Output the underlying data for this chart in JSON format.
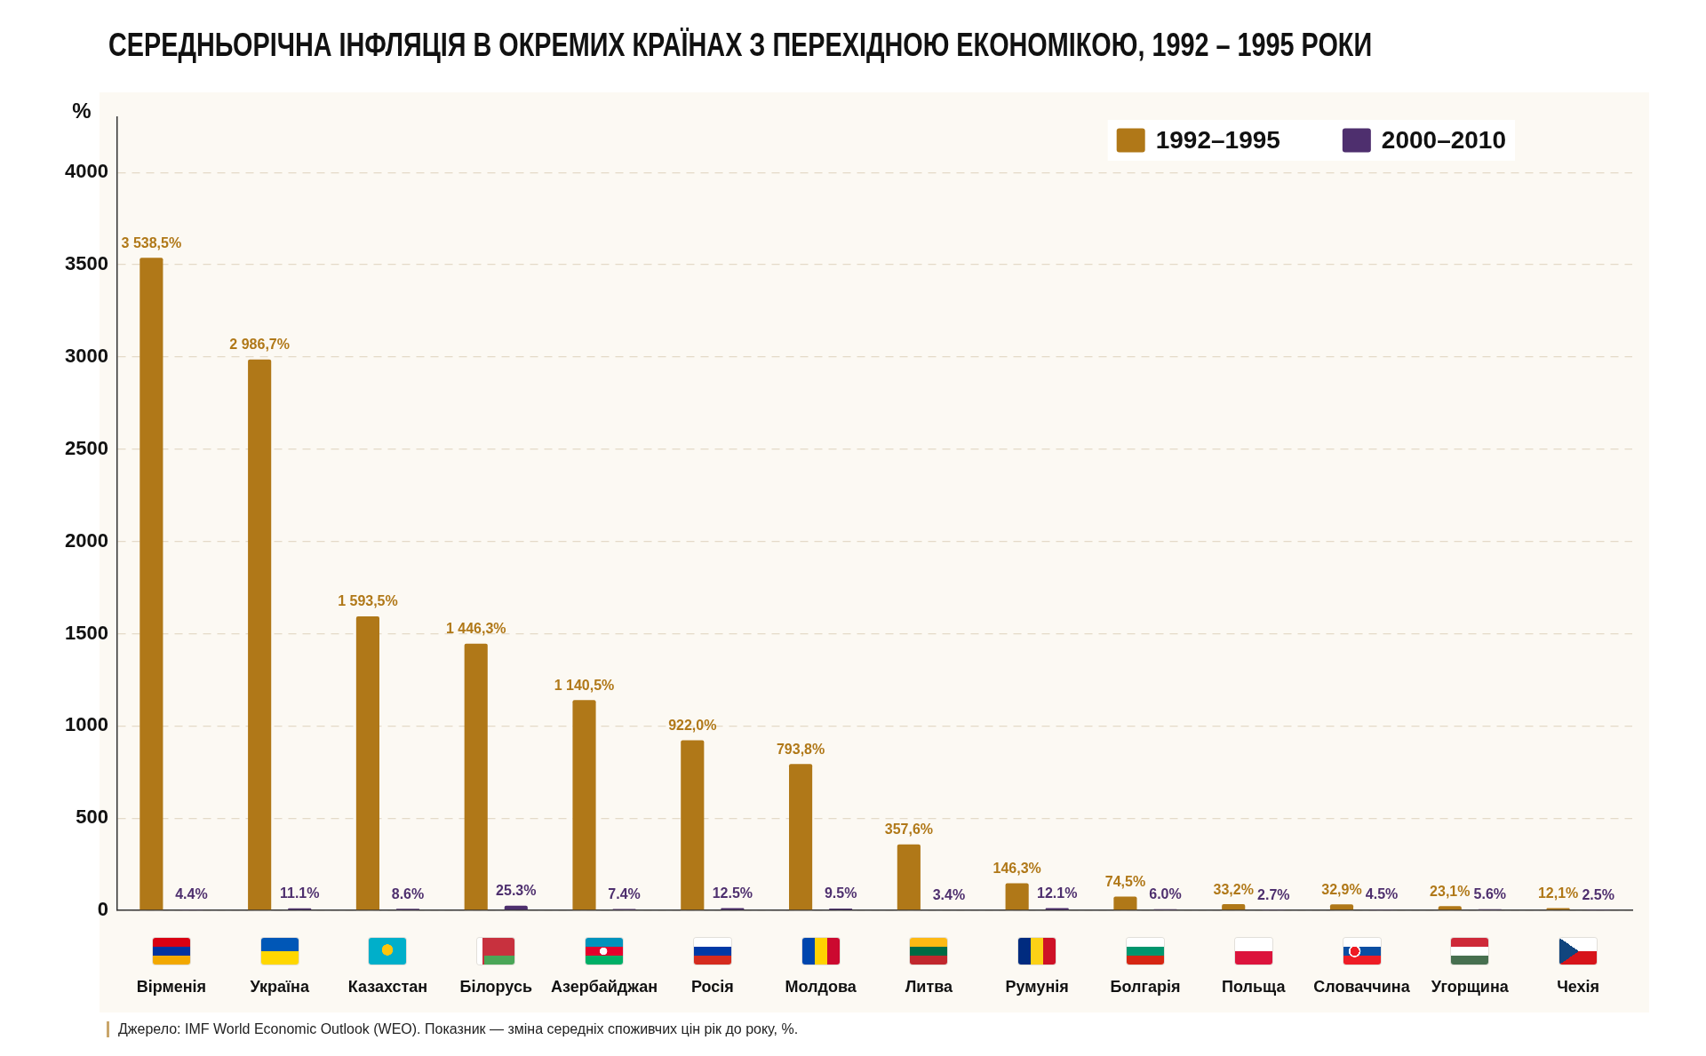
{
  "chart_data": {
    "type": "bar",
    "title": "СЕРЕДНЬОРІЧНА ІНФЛЯЦІЯ В ОКРЕМИХ КРАЇНАХ З ПЕРЕХІДНОЮ ЕКОНОМІКОЮ, 1992 – 1995 РОКИ",
    "ylabel": "%",
    "categories": [
      "Вірменія",
      "Україна",
      "Казахстан",
      "Білорусь",
      "Азербайджан",
      "Росія",
      "Молдова",
      "Литва",
      "Румунія",
      "Болгарія",
      "Польща",
      "Словаччина",
      "Угорщина",
      "Чехія"
    ],
    "series": [
      {
        "name": "1992–1995",
        "color": "#b07818",
        "values": [
          3538.5,
          2986.7,
          1593.5,
          1446.3,
          1140.5,
          922.0,
          793.8,
          357.6,
          146.3,
          74.5,
          33.2,
          32.9,
          23.1,
          12.1
        ],
        "value_labels": [
          "3 538,5%",
          "2 986,7%",
          "1 593,5%",
          "1 446,3%",
          "1 140,5%",
          "922,0%",
          "793,8%",
          "357,6%",
          "146,3%",
          "74,5%",
          "33,2%",
          "32,9%",
          "23,1%",
          "12,1%"
        ]
      },
      {
        "name": "2000–2010",
        "color": "#4e2f6e",
        "values": [
          4.4,
          11.1,
          8.6,
          25.3,
          7.4,
          12.5,
          9.5,
          3.4,
          12.1,
          6.0,
          2.7,
          4.5,
          5.6,
          2.5
        ],
        "value_labels": [
          "4.4%",
          "11.1%",
          "8.6%",
          "25.3%",
          "7.4%",
          "12.5%",
          "9.5%",
          "3.4%",
          "12.1%",
          "6.0%",
          "2.7%",
          "4.5%",
          "5.6%",
          "2.5%"
        ]
      }
    ],
    "ylim": [
      0,
      4300
    ],
    "yticks": [
      0,
      500,
      1000,
      1500,
      2000,
      2500,
      3000,
      3500,
      4000
    ],
    "grid": "y",
    "legend": "top right",
    "annotations": [
      "Джерело: IMF World Economic Outlook (WEO). Показник — зміна середніх споживчих цін рік до року, %."
    ]
  }
}
